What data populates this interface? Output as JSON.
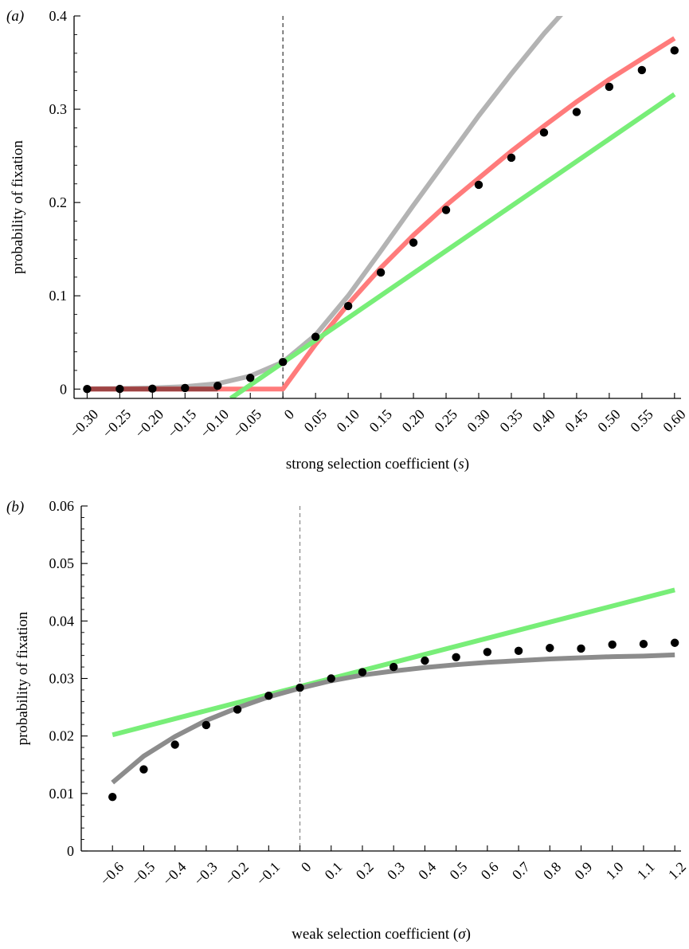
{
  "chart_data": [
    {
      "panel_label": "(a)",
      "type": "line",
      "xlabel": "strong selection coefficient (s)",
      "xlabel_parts": [
        "strong selection coefficient (",
        "s",
        ")"
      ],
      "ylabel": "probability of fixation",
      "xlim": [
        -0.32,
        0.61
      ],
      "ylim": [
        -0.01,
        0.4
      ],
      "x_ticks": [
        -0.3,
        -0.25,
        -0.2,
        -0.15,
        -0.1,
        -0.05,
        0,
        0.05,
        0.1,
        0.15,
        0.2,
        0.25,
        0.3,
        0.35,
        0.4,
        0.45,
        0.5,
        0.55,
        0.6
      ],
      "x_tick_labels": [
        "−0.30",
        "−0.25",
        "−0.20",
        "−0.15",
        "−0.10",
        "−0.05",
        "0",
        "0.05",
        "0.10",
        "0.15",
        "0.20",
        "0.25",
        "0.30",
        "0.35",
        "0.40",
        "0.45",
        "0.50",
        "0.55",
        "0.60"
      ],
      "y_ticks": [
        0,
        0.1,
        0.2,
        0.3,
        0.4
      ],
      "y_tick_labels": [
        "0",
        "0.1",
        "0.2",
        "0.3",
        "0.4"
      ],
      "reference_line_x": 0,
      "series": [
        {
          "style": "line",
          "color": "#b3b3b3",
          "x": [
            -0.3,
            -0.25,
            -0.2,
            -0.15,
            -0.1,
            -0.05,
            0,
            0.05,
            0.1,
            0.15,
            0.2,
            0.25,
            0.3,
            0.35,
            0.4,
            0.45
          ],
          "y": [
            0.0003,
            0.0006,
            0.0012,
            0.0026,
            0.0058,
            0.014,
            0.029,
            0.058,
            0.1,
            0.148,
            0.197,
            0.245,
            0.293,
            0.338,
            0.381,
            0.42
          ]
        },
        {
          "style": "line",
          "color": "#ff7b7b",
          "x": [
            -0.3,
            -0.25,
            -0.2,
            -0.15,
            -0.1,
            -0.05,
            0,
            0.05,
            0.1,
            0.15,
            0.2,
            0.25,
            0.3,
            0.35,
            0.4,
            0.45,
            0.5,
            0.55,
            0.6
          ],
          "y": [
            0,
            0,
            0,
            0,
            0,
            0,
            0,
            0.048,
            0.091,
            0.13,
            0.165,
            0.197,
            0.226,
            0.255,
            0.282,
            0.308,
            0.332,
            0.354,
            0.376
          ]
        },
        {
          "style": "line",
          "color": "#78ee78",
          "x": [
            -0.08,
            0.6
          ],
          "y": [
            -0.01,
            0.316
          ]
        },
        {
          "style": "line",
          "color": "#9e4444",
          "x": [
            -0.3,
            -0.1
          ],
          "y": [
            0.0,
            0.0
          ]
        },
        {
          "style": "points",
          "color": "#000000",
          "x": [
            -0.3,
            -0.25,
            -0.2,
            -0.15,
            -0.1,
            -0.05,
            0,
            0.05,
            0.1,
            0.15,
            0.2,
            0.25,
            0.3,
            0.35,
            0.4,
            0.45,
            0.5,
            0.55,
            0.6
          ],
          "y": [
            0.0001,
            0.0002,
            0.0004,
            0.0012,
            0.0035,
            0.012,
            0.029,
            0.056,
            0.089,
            0.125,
            0.157,
            0.192,
            0.219,
            0.248,
            0.275,
            0.297,
            0.324,
            0.342,
            0.363
          ]
        }
      ]
    },
    {
      "panel_label": "(b)",
      "type": "line",
      "xlabel": "weak selection coefficient (σ)",
      "xlabel_parts": [
        "weak selection coefficient (",
        "σ",
        ")"
      ],
      "ylabel": "probability of fixation",
      "xlim": [
        -0.7,
        1.22
      ],
      "ylim": [
        0,
        0.06
      ],
      "x_ticks": [
        -0.6,
        -0.5,
        -0.4,
        -0.3,
        -0.2,
        -0.1,
        0,
        0.1,
        0.2,
        0.3,
        0.4,
        0.5,
        0.6,
        0.7,
        0.8,
        0.9,
        1.0,
        1.1,
        1.2
      ],
      "x_tick_labels": [
        "−0.6",
        "−0.5",
        "−0.4",
        "−0.3",
        "−0.2",
        "−0.1",
        "0",
        "0.1",
        "0.2",
        "0.3",
        "0.4",
        "0.5",
        "0.6",
        "0.7",
        "0.8",
        "0.9",
        "1.0",
        "1.1",
        "1.2"
      ],
      "y_ticks": [
        0,
        0.01,
        0.02,
        0.03,
        0.04,
        0.05,
        0.06
      ],
      "y_tick_labels": [
        "0",
        "0.01",
        "0.02",
        "0.03",
        "0.04",
        "0.05",
        "0.06"
      ],
      "reference_line_x": 0,
      "series": [
        {
          "style": "line",
          "color": "#78ee78",
          "x": [
            -0.6,
            1.2
          ],
          "y": [
            0.0202,
            0.0454
          ]
        },
        {
          "style": "line",
          "color": "#8c8c8c",
          "x": [
            -0.6,
            -0.5,
            -0.4,
            -0.3,
            -0.2,
            -0.1,
            0,
            0.1,
            0.2,
            0.3,
            0.4,
            0.5,
            0.6,
            0.7,
            0.8,
            0.9,
            1.0,
            1.1,
            1.2
          ],
          "y": [
            0.0119,
            0.0165,
            0.0199,
            0.0227,
            0.0249,
            0.0268,
            0.0283,
            0.0296,
            0.0306,
            0.0313,
            0.0319,
            0.0324,
            0.0328,
            0.0331,
            0.0334,
            0.0336,
            0.0338,
            0.0339,
            0.0341
          ]
        },
        {
          "style": "points",
          "color": "#000000",
          "x": [
            -0.6,
            -0.5,
            -0.4,
            -0.3,
            -0.2,
            -0.1,
            0,
            0.1,
            0.2,
            0.3,
            0.4,
            0.5,
            0.6,
            0.7,
            0.8,
            0.9,
            1.0,
            1.1,
            1.2
          ],
          "y": [
            0.0094,
            0.0142,
            0.0185,
            0.0219,
            0.0246,
            0.027,
            0.0284,
            0.03,
            0.0311,
            0.032,
            0.0331,
            0.0337,
            0.0346,
            0.0348,
            0.0353,
            0.0352,
            0.0359,
            0.036,
            0.0362
          ]
        }
      ]
    }
  ]
}
